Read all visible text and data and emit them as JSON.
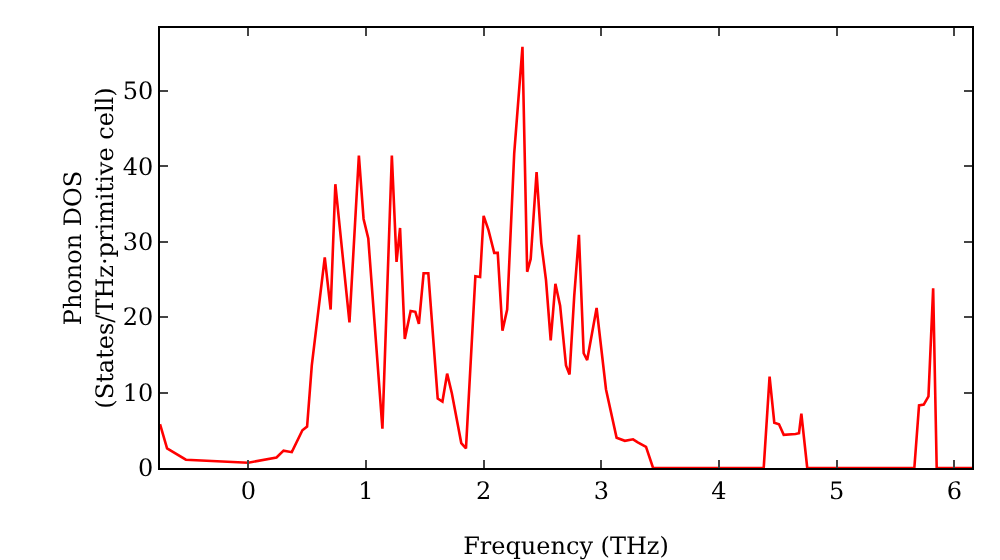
{
  "chart_data": {
    "type": "line",
    "xlabel": "Frequency (THz)",
    "ylabel": "Phonon DOS\n(States/THz·primitive cell)",
    "xlim": [
      -0.75,
      6.15
    ],
    "ylim": [
      0,
      58.3
    ],
    "xticks": [
      0,
      1,
      2,
      3,
      4,
      5,
      6
    ],
    "yticks": [
      0,
      10,
      20,
      30,
      40,
      50
    ],
    "grid": false,
    "marker": "none",
    "line_style": "solid",
    "series": [
      {
        "color": "#ff0000",
        "x": [
          -0.75,
          -0.69,
          -0.53,
          0,
          0.24,
          0.3,
          0.37,
          0.46,
          0.5,
          0.54,
          0.65,
          0.7,
          0.74,
          0.86,
          0.94,
          0.98,
          1.02,
          1.14,
          1.22,
          1.26,
          1.29,
          1.33,
          1.38,
          1.42,
          1.45,
          1.49,
          1.53,
          1.61,
          1.65,
          1.69,
          1.73,
          1.81,
          1.85,
          1.93,
          1.97,
          2.0,
          2.04,
          2.09,
          2.12,
          2.16,
          2.2,
          2.26,
          2.33,
          2.37,
          2.4,
          2.45,
          2.49,
          2.53,
          2.57,
          2.61,
          2.65,
          2.7,
          2.73,
          2.77,
          2.81,
          2.85,
          2.88,
          2.96,
          3.04,
          3.13,
          3.2,
          3.27,
          3.31,
          3.38,
          3.44,
          4.38,
          4.43,
          4.47,
          4.51,
          4.55,
          4.65,
          4.68,
          4.7,
          4.75,
          5.66,
          5.7,
          5.74,
          5.78,
          5.82,
          5.85,
          6.15
        ],
        "values": [
          5.8,
          2.6,
          1.1,
          0.7,
          1.4,
          2.3,
          2.1,
          5,
          5.5,
          13.6,
          27.9,
          21,
          37.6,
          19.3,
          41.4,
          33,
          30.4,
          5.2,
          41.4,
          27.3,
          31.8,
          17.1,
          20.8,
          20.7,
          19.1,
          25.8,
          25.8,
          9.2,
          8.8,
          12.5,
          9.9,
          3.3,
          2.6,
          25.4,
          25.3,
          33.4,
          31.6,
          28.5,
          28.5,
          18.2,
          21,
          41.7,
          55.8,
          26,
          27.7,
          39.2,
          29.8,
          24.9,
          16.9,
          24.4,
          21.5,
          13.6,
          12.4,
          22.8,
          30.9,
          15.2,
          14.3,
          21.2,
          10.4,
          4,
          3.6,
          3.8,
          3.4,
          2.8,
          0,
          0,
          12.1,
          6,
          5.8,
          4.4,
          4.5,
          4.6,
          7.2,
          0,
          0,
          8.3,
          8.4,
          9.5,
          23.8,
          0,
          0
        ]
      }
    ]
  }
}
